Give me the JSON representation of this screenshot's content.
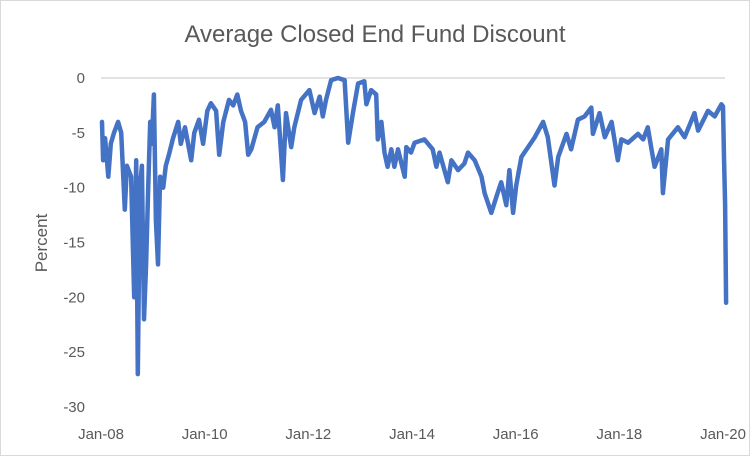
{
  "chart_data": {
    "type": "line",
    "title": "Average Closed End Fund Discount",
    "xlabel": "",
    "ylabel": "Percent",
    "ylim": [
      -30,
      0
    ],
    "yticks": [
      0,
      -5,
      -10,
      -15,
      -20,
      -25,
      -30
    ],
    "xlim": [
      2008,
      2020
    ],
    "xticks": [
      {
        "x": 2008,
        "label": "Jan-08"
      },
      {
        "x": 2010,
        "label": "Jan-10"
      },
      {
        "x": 2012,
        "label": "Jan-12"
      },
      {
        "x": 2014,
        "label": "Jan-14"
      },
      {
        "x": 2016,
        "label": "Jan-16"
      },
      {
        "x": 2018,
        "label": "Jan-18"
      },
      {
        "x": 2020,
        "label": "Jan-20"
      }
    ],
    "grid": "zero line only",
    "legend": "none",
    "series": [
      {
        "name": "Average Closed End Fund Discount",
        "color": "#4472C4",
        "points": [
          [
            2008.02,
            -4
          ],
          [
            2008.04,
            -7.5
          ],
          [
            2008.08,
            -5.5
          ],
          [
            2008.14,
            -9
          ],
          [
            2008.19,
            -6
          ],
          [
            2008.25,
            -5
          ],
          [
            2008.33,
            -4
          ],
          [
            2008.39,
            -5
          ],
          [
            2008.46,
            -12
          ],
          [
            2008.5,
            -8
          ],
          [
            2008.58,
            -9
          ],
          [
            2008.64,
            -20
          ],
          [
            2008.68,
            -7.5
          ],
          [
            2008.71,
            -27
          ],
          [
            2008.75,
            -10
          ],
          [
            2008.79,
            -8
          ],
          [
            2008.83,
            -22
          ],
          [
            2008.87,
            -17
          ],
          [
            2008.91,
            -10
          ],
          [
            2008.95,
            -4
          ],
          [
            2008.98,
            -6
          ],
          [
            2009.02,
            -1.5
          ],
          [
            2009.06,
            -13
          ],
          [
            2009.1,
            -17
          ],
          [
            2009.14,
            -9
          ],
          [
            2009.2,
            -10
          ],
          [
            2009.25,
            -8
          ],
          [
            2009.31,
            -7
          ],
          [
            2009.39,
            -5.5
          ],
          [
            2009.49,
            -4
          ],
          [
            2009.54,
            -6
          ],
          [
            2009.62,
            -4.5
          ],
          [
            2009.74,
            -7.5
          ],
          [
            2009.8,
            -5
          ],
          [
            2009.89,
            -3.8
          ],
          [
            2009.97,
            -6
          ],
          [
            2010.05,
            -3
          ],
          [
            2010.12,
            -2.3
          ],
          [
            2010.22,
            -3
          ],
          [
            2010.28,
            -7
          ],
          [
            2010.36,
            -4
          ],
          [
            2010.47,
            -2
          ],
          [
            2010.55,
            -2.5
          ],
          [
            2010.63,
            -1.5
          ],
          [
            2010.7,
            -3
          ],
          [
            2010.78,
            -4
          ],
          [
            2010.84,
            -7
          ],
          [
            2010.9,
            -6.5
          ],
          [
            2011.02,
            -4.5
          ],
          [
            2011.15,
            -4
          ],
          [
            2011.28,
            -2.9
          ],
          [
            2011.35,
            -4.5
          ],
          [
            2011.41,
            -2.5
          ],
          [
            2011.51,
            -9.3
          ],
          [
            2011.57,
            -3.2
          ],
          [
            2011.67,
            -6.3
          ],
          [
            2011.73,
            -4.5
          ],
          [
            2011.86,
            -2
          ],
          [
            2012.02,
            -1.1
          ],
          [
            2012.12,
            -3.2
          ],
          [
            2012.22,
            -1.7
          ],
          [
            2012.28,
            -3.5
          ],
          [
            2012.34,
            -2
          ],
          [
            2012.44,
            -0.2
          ],
          [
            2012.57,
            0
          ],
          [
            2012.7,
            -0.2
          ],
          [
            2012.77,
            -5.9
          ],
          [
            2012.86,
            -3.2
          ],
          [
            2012.96,
            -0.5
          ],
          [
            2013.08,
            -0.3
          ],
          [
            2013.12,
            -2.4
          ],
          [
            2013.21,
            -1.1
          ],
          [
            2013.31,
            -1.5
          ],
          [
            2013.34,
            -5.6
          ],
          [
            2013.41,
            -4
          ],
          [
            2013.47,
            -6.8
          ],
          [
            2013.53,
            -8.1
          ],
          [
            2013.6,
            -6.5
          ],
          [
            2013.66,
            -8.1
          ],
          [
            2013.73,
            -6.5
          ],
          [
            2013.86,
            -9
          ],
          [
            2013.89,
            -6.3
          ],
          [
            2013.98,
            -6.8
          ],
          [
            2014.05,
            -5.9
          ],
          [
            2014.24,
            -5.6
          ],
          [
            2014.4,
            -6.5
          ],
          [
            2014.47,
            -8.1
          ],
          [
            2014.53,
            -6.8
          ],
          [
            2014.69,
            -9.5
          ],
          [
            2014.76,
            -7.5
          ],
          [
            2014.89,
            -8.4
          ],
          [
            2015.01,
            -7.8
          ],
          [
            2015.08,
            -6.8
          ],
          [
            2015.21,
            -7.5
          ],
          [
            2015.34,
            -9
          ],
          [
            2015.4,
            -10.5
          ],
          [
            2015.53,
            -12.3
          ],
          [
            2015.63,
            -10.8
          ],
          [
            2015.72,
            -9.5
          ],
          [
            2015.82,
            -11.6
          ],
          [
            2015.88,
            -8.4
          ],
          [
            2015.95,
            -12.3
          ],
          [
            2016.01,
            -9.8
          ],
          [
            2016.11,
            -7.2
          ],
          [
            2016.24,
            -6.3
          ],
          [
            2016.37,
            -5.4
          ],
          [
            2016.53,
            -4
          ],
          [
            2016.62,
            -5.4
          ],
          [
            2016.75,
            -9.8
          ],
          [
            2016.82,
            -7.2
          ],
          [
            2016.98,
            -5.1
          ],
          [
            2017.07,
            -6.5
          ],
          [
            2017.2,
            -3.8
          ],
          [
            2017.33,
            -3.5
          ],
          [
            2017.46,
            -2.7
          ],
          [
            2017.49,
            -5.1
          ],
          [
            2017.62,
            -3.2
          ],
          [
            2017.72,
            -5.4
          ],
          [
            2017.85,
            -4
          ],
          [
            2017.97,
            -7.5
          ],
          [
            2018.04,
            -5.6
          ],
          [
            2018.17,
            -5.9
          ],
          [
            2018.36,
            -5.1
          ],
          [
            2018.46,
            -5.6
          ],
          [
            2018.55,
            -4.5
          ],
          [
            2018.62,
            -6.5
          ],
          [
            2018.68,
            -8.1
          ],
          [
            2018.81,
            -6.5
          ],
          [
            2018.84,
            -10.5
          ],
          [
            2018.94,
            -5.6
          ],
          [
            2019.13,
            -4.5
          ],
          [
            2019.26,
            -5.4
          ],
          [
            2019.45,
            -3.2
          ],
          [
            2019.52,
            -4.8
          ],
          [
            2019.71,
            -3
          ],
          [
            2019.84,
            -3.5
          ],
          [
            2019.97,
            -2.4
          ],
          [
            2020.0,
            -2.6
          ],
          [
            2020.02,
            -7.2
          ],
          [
            2020.04,
            -11.5
          ],
          [
            2020.06,
            -20.5
          ]
        ]
      }
    ]
  }
}
